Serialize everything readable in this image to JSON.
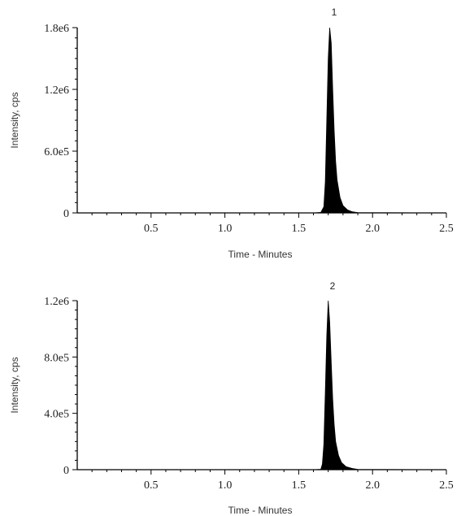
{
  "chart_data": [
    {
      "type": "area",
      "peak_label": "1",
      "xlabel": "Time - Minutes",
      "ylabel": "Intensity, cps",
      "xlim": [
        0.0,
        2.5
      ],
      "ylim": [
        0,
        1800000
      ],
      "x_ticks": [
        "0.5",
        "1.0",
        "1.5",
        "2.0",
        "2.5"
      ],
      "y_ticks": [
        "0",
        "6.0e5",
        "1.2e6",
        "1.8e6"
      ],
      "grid": false,
      "x": [
        0.0,
        1.6,
        1.65,
        1.67,
        1.68,
        1.69,
        1.7,
        1.71,
        1.72,
        1.73,
        1.74,
        1.75,
        1.76,
        1.78,
        1.8,
        1.83,
        1.86,
        1.9,
        2.5
      ],
      "y": [
        0,
        0,
        5000,
        60000,
        300000,
        900000,
        1500000,
        1800000,
        1650000,
        1200000,
        800000,
        500000,
        320000,
        150000,
        70000,
        30000,
        12000,
        3000,
        0
      ]
    },
    {
      "type": "area",
      "peak_label": "2",
      "xlabel": "Time - Minutes",
      "ylabel": "Intensity, cps",
      "xlim": [
        0.0,
        2.5
      ],
      "ylim": [
        0,
        1200000
      ],
      "x_ticks": [
        "0.5",
        "1.0",
        "1.5",
        "2.0",
        "2.5"
      ],
      "y_ticks": [
        "0",
        "4.0e5",
        "8.0e5",
        "1.2e6"
      ],
      "grid": false,
      "x": [
        0.0,
        1.6,
        1.65,
        1.66,
        1.67,
        1.68,
        1.69,
        1.7,
        1.71,
        1.72,
        1.73,
        1.74,
        1.75,
        1.77,
        1.79,
        1.82,
        1.86,
        1.9,
        2.5
      ],
      "y": [
        0,
        0,
        3000,
        40000,
        180000,
        550000,
        950000,
        1200000,
        1050000,
        760000,
        500000,
        320000,
        200000,
        100000,
        50000,
        22000,
        9000,
        2000,
        0
      ]
    }
  ]
}
